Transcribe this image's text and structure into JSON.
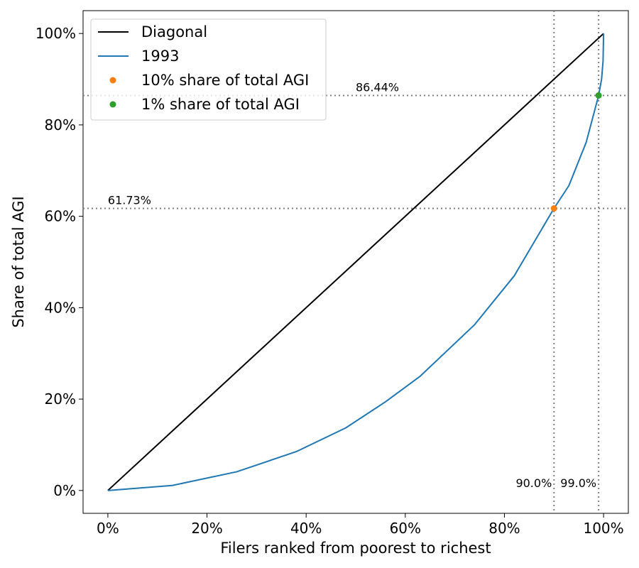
{
  "chart_data": {
    "type": "line",
    "title": "",
    "xlabel": "Filers ranked from poorest to richest",
    "ylabel": "Share of total AGI",
    "xlim": [
      -0.05,
      1.05
    ],
    "ylim": [
      -0.05,
      1.05
    ],
    "x_ticks": [
      {
        "value": 0.0,
        "label": "0%"
      },
      {
        "value": 0.2,
        "label": "20%"
      },
      {
        "value": 0.4,
        "label": "40%"
      },
      {
        "value": 0.6,
        "label": "60%"
      },
      {
        "value": 0.8,
        "label": "80%"
      },
      {
        "value": 1.0,
        "label": "100%"
      }
    ],
    "y_ticks": [
      {
        "value": 0.0,
        "label": "0%"
      },
      {
        "value": 0.2,
        "label": "20%"
      },
      {
        "value": 0.4,
        "label": "40%"
      },
      {
        "value": 0.6,
        "label": "60%"
      },
      {
        "value": 0.8,
        "label": "80%"
      },
      {
        "value": 1.0,
        "label": "100%"
      }
    ],
    "series": [
      {
        "name": "Diagonal",
        "kind": "line",
        "color": "#000000",
        "x": [
          0,
          1
        ],
        "y": [
          0,
          1
        ]
      },
      {
        "name": "1993",
        "kind": "line",
        "color": "#1f77b4",
        "x": [
          0,
          0.13,
          0.26,
          0.38,
          0.48,
          0.56,
          0.63,
          0.74,
          0.82,
          0.9,
          0.93,
          0.965,
          0.99,
          0.996,
          0.999,
          1.0
        ],
        "y": [
          0,
          0.011,
          0.041,
          0.085,
          0.137,
          0.194,
          0.25,
          0.363,
          0.47,
          0.6173,
          0.667,
          0.762,
          0.8644,
          0.9,
          0.94,
          1.0
        ]
      },
      {
        "name": "10% share of total AGI",
        "kind": "point",
        "color": "#ff7f0e",
        "x": [
          0.9
        ],
        "y": [
          0.6173
        ]
      },
      {
        "name": "1% share of total AGI",
        "kind": "point",
        "color": "#2ca02c",
        "x": [
          0.99
        ],
        "y": [
          0.8644
        ]
      }
    ],
    "reference_lines": [
      {
        "orientation": "horizontal",
        "value": 0.8644,
        "label": "86.44%",
        "label_x": 0.5
      },
      {
        "orientation": "horizontal",
        "value": 0.6173,
        "label": "61.73%",
        "label_x": 0.0
      },
      {
        "orientation": "vertical",
        "value": 0.9,
        "label": "90.0%",
        "label_y": 0.0
      },
      {
        "orientation": "vertical",
        "value": 0.99,
        "label": "99.0%",
        "label_y": 0.0
      }
    ],
    "legend": {
      "placement": "top-left",
      "entries": [
        "Diagonal",
        "1993",
        "10% share of total AGI",
        "1% share of total AGI"
      ]
    },
    "grid": false
  }
}
